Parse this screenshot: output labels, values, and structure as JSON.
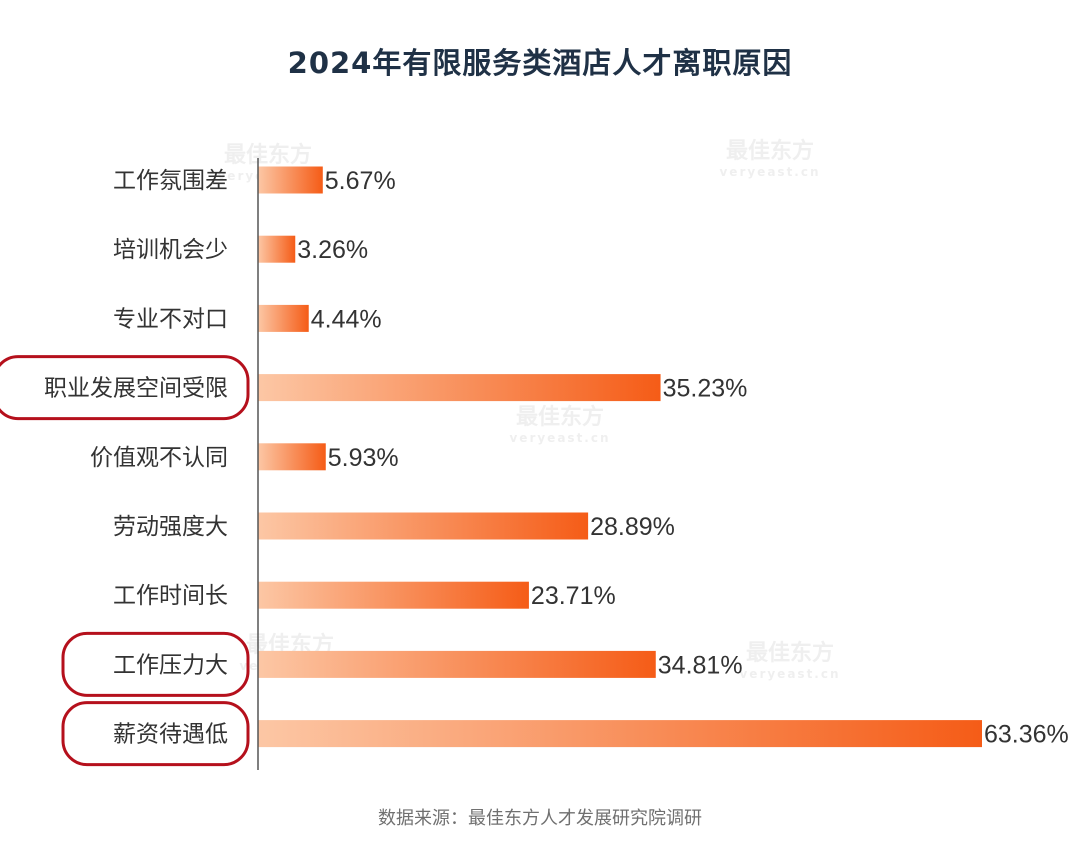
{
  "chart_data": {
    "type": "bar",
    "orientation": "horizontal",
    "title": "2024年有限服务类酒店人才离职原因",
    "categories": [
      "工作氛围差",
      "培训机会少",
      "专业不对口",
      "职业发展空间受限",
      "价值观不认同",
      "劳动强度大",
      "工作时间长",
      "工作压力大",
      "薪资待遇低"
    ],
    "values": [
      5.67,
      3.26,
      4.44,
      35.23,
      5.93,
      28.89,
      23.71,
      34.81,
      63.36
    ],
    "value_labels": [
      "5.67%",
      "3.26%",
      "4.44%",
      "35.23%",
      "5.93%",
      "28.89%",
      "23.71%",
      "34.81%",
      "63.36%"
    ],
    "highlighted": [
      "职业发展空间受限",
      "工作压力大",
      "薪资待遇低"
    ],
    "xlim": [
      0,
      63.36
    ],
    "grid": false,
    "colors": {
      "bar_start": "#fcc7a5",
      "bar_end": "#f55c17",
      "highlight_outline": "#b5101c",
      "axis": "#555555",
      "title": "#1f3146"
    }
  },
  "watermark": {
    "brand": "最佳东方",
    "domain": "veryeast.cn"
  },
  "source": "数据来源：最佳东方人才发展研究院调研"
}
